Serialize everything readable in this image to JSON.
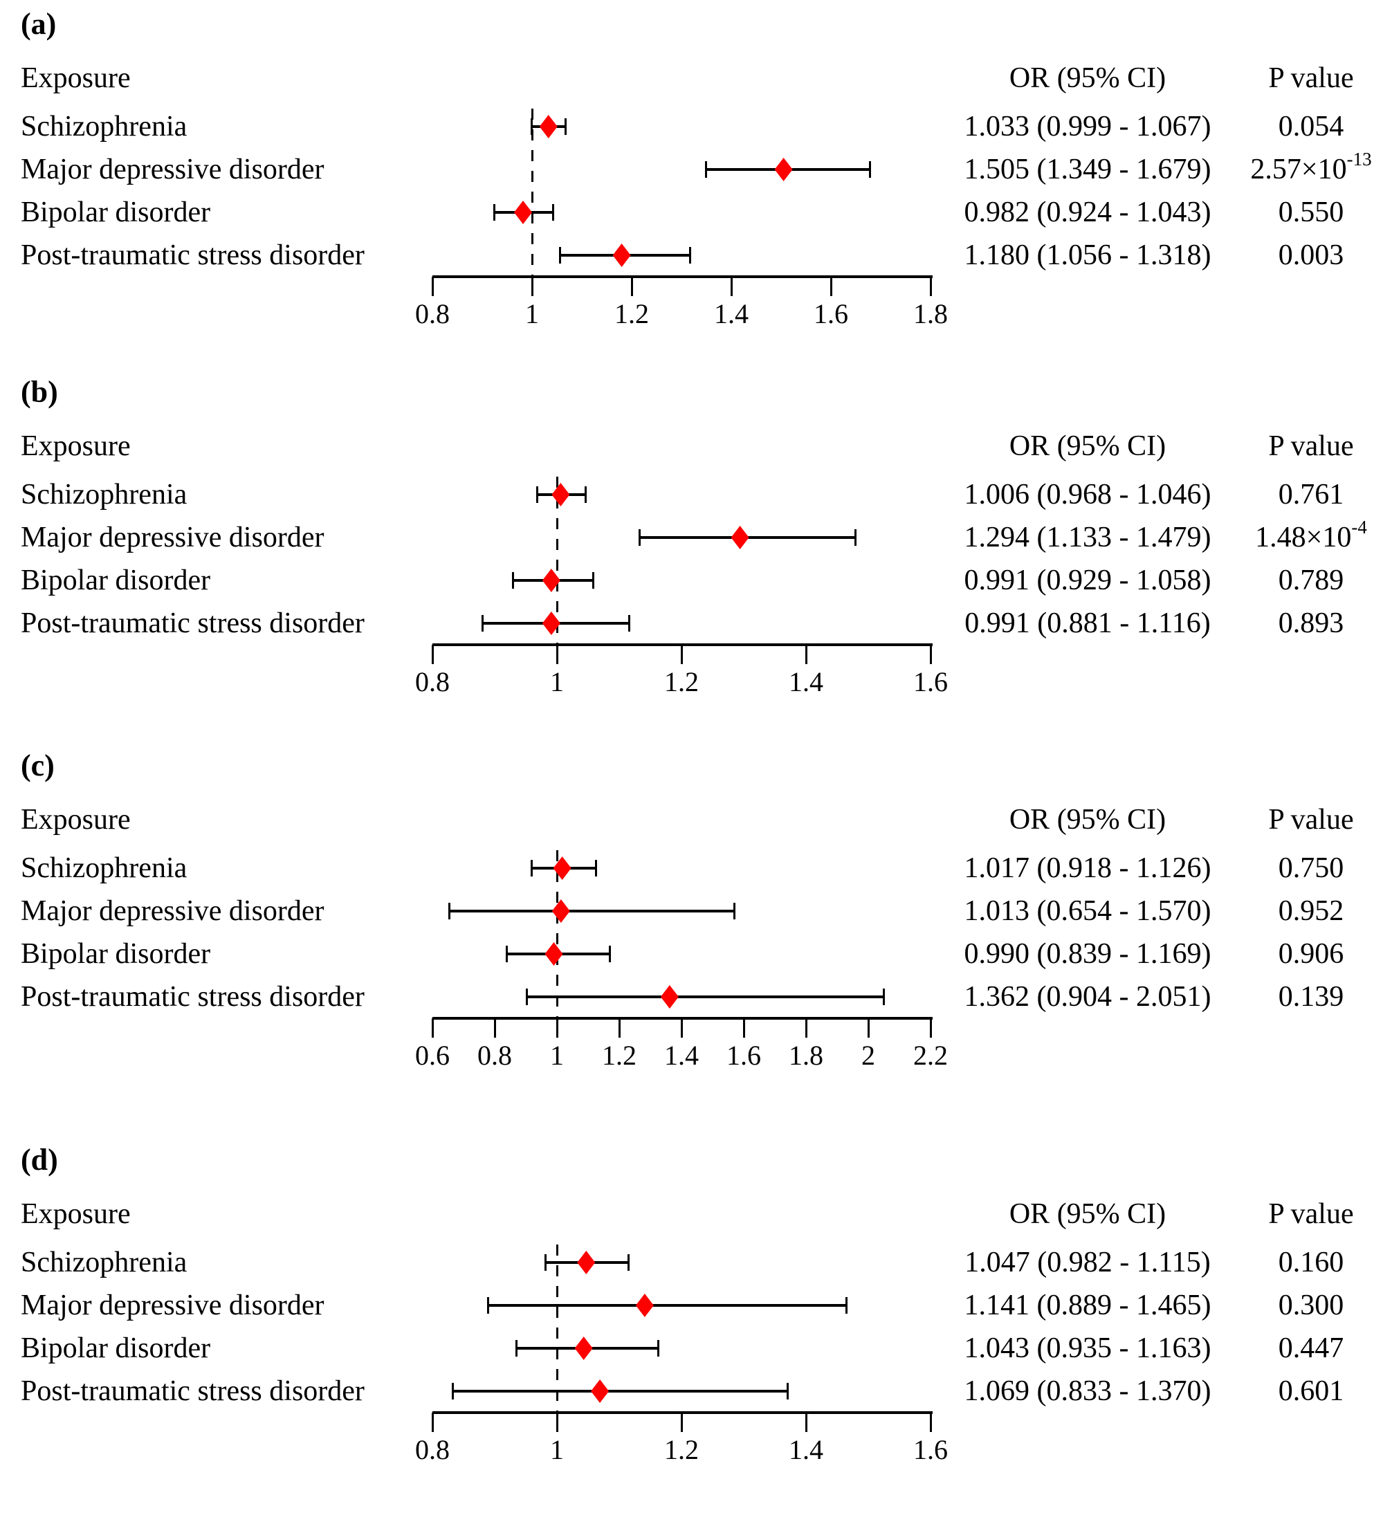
{
  "figure": {
    "background": "#ffffff",
    "text_color": "#000000",
    "marker_color": "#fd0000",
    "line_color": "#000000"
  },
  "columns": {
    "exposure": "Exposure",
    "or_ci": "OR (95% CI)",
    "p_value": "P value"
  },
  "chart_data": [
    {
      "type": "forest",
      "panel": "(a)",
      "legend_position": "none",
      "axis": {
        "min": 0.8,
        "max": 1.8,
        "reference_line": 1,
        "tick_values": [
          0.8,
          1,
          1.2,
          1.4,
          1.6,
          1.8
        ],
        "tick_labels": [
          "0.8",
          "1",
          "1.2",
          "1.4",
          "1.6",
          "1.8"
        ]
      },
      "rows": [
        {
          "exposure": "Schizophrenia",
          "or": 1.033,
          "ci_low": 0.999,
          "ci_high": 1.067,
          "or_ci_text": "1.033 (0.999 - 1.067)",
          "p_text": "0.054",
          "p_sup": ""
        },
        {
          "exposure": "Major depressive disorder",
          "or": 1.505,
          "ci_low": 1.349,
          "ci_high": 1.679,
          "or_ci_text": "1.505 (1.349 - 1.679)",
          "p_text": "2.57×10",
          "p_sup": "-13"
        },
        {
          "exposure": "Bipolar disorder",
          "or": 0.982,
          "ci_low": 0.924,
          "ci_high": 1.043,
          "or_ci_text": "0.982 (0.924 - 1.043)",
          "p_text": "0.550",
          "p_sup": ""
        },
        {
          "exposure": "Post-traumatic stress disorder",
          "or": 1.18,
          "ci_low": 1.056,
          "ci_high": 1.318,
          "or_ci_text": "1.180 (1.056 - 1.318)",
          "p_text": "0.003",
          "p_sup": ""
        }
      ]
    },
    {
      "type": "forest",
      "panel": "(b)",
      "legend_position": "none",
      "axis": {
        "min": 0.8,
        "max": 1.6,
        "reference_line": 1,
        "tick_values": [
          0.8,
          1,
          1.2,
          1.4,
          1.6
        ],
        "tick_labels": [
          "0.8",
          "1",
          "1.2",
          "1.4",
          "1.6"
        ]
      },
      "rows": [
        {
          "exposure": "Schizophrenia",
          "or": 1.006,
          "ci_low": 0.968,
          "ci_high": 1.046,
          "or_ci_text": "1.006 (0.968 - 1.046)",
          "p_text": "0.761",
          "p_sup": ""
        },
        {
          "exposure": "Major depressive disorder",
          "or": 1.294,
          "ci_low": 1.133,
          "ci_high": 1.479,
          "or_ci_text": "1.294 (1.133 - 1.479)",
          "p_text": "1.48×10",
          "p_sup": "-4"
        },
        {
          "exposure": "Bipolar disorder",
          "or": 0.991,
          "ci_low": 0.929,
          "ci_high": 1.058,
          "or_ci_text": "0.991 (0.929 - 1.058)",
          "p_text": "0.789",
          "p_sup": ""
        },
        {
          "exposure": "Post-traumatic stress disorder",
          "or": 0.991,
          "ci_low": 0.881,
          "ci_high": 1.116,
          "or_ci_text": "0.991 (0.881 - 1.116)",
          "p_text": "0.893",
          "p_sup": ""
        }
      ]
    },
    {
      "type": "forest",
      "panel": "(c)",
      "legend_position": "none",
      "axis": {
        "min": 0.6,
        "max": 2.2,
        "reference_line": 1,
        "tick_values": [
          0.6,
          0.8,
          1,
          1.2,
          1.4,
          1.6,
          1.8,
          2,
          2.2
        ],
        "tick_labels": [
          "0.6",
          "0.8",
          "1",
          "1.2",
          "1.4",
          "1.6",
          "1.8",
          "2",
          "2.2"
        ]
      },
      "rows": [
        {
          "exposure": "Schizophrenia",
          "or": 1.017,
          "ci_low": 0.918,
          "ci_high": 1.126,
          "or_ci_text": "1.017 (0.918 - 1.126)",
          "p_text": "0.750",
          "p_sup": ""
        },
        {
          "exposure": "Major depressive disorder",
          "or": 1.013,
          "ci_low": 0.654,
          "ci_high": 1.57,
          "or_ci_text": "1.013 (0.654 - 1.570)",
          "p_text": "0.952",
          "p_sup": ""
        },
        {
          "exposure": "Bipolar disorder",
          "or": 0.99,
          "ci_low": 0.839,
          "ci_high": 1.169,
          "or_ci_text": "0.990 (0.839 - 1.169)",
          "p_text": "0.906",
          "p_sup": ""
        },
        {
          "exposure": "Post-traumatic stress disorder",
          "or": 1.362,
          "ci_low": 0.904,
          "ci_high": 2.051,
          "or_ci_text": "1.362 (0.904 - 2.051)",
          "p_text": "0.139",
          "p_sup": ""
        }
      ]
    },
    {
      "type": "forest",
      "panel": "(d)",
      "legend_position": "none",
      "axis": {
        "min": 0.8,
        "max": 1.6,
        "reference_line": 1,
        "tick_values": [
          0.8,
          1,
          1.2,
          1.4,
          1.6
        ],
        "tick_labels": [
          "0.8",
          "1",
          "1.2",
          "1.4",
          "1.6"
        ]
      },
      "rows": [
        {
          "exposure": "Schizophrenia",
          "or": 1.047,
          "ci_low": 0.982,
          "ci_high": 1.115,
          "or_ci_text": "1.047 (0.982 - 1.115)",
          "p_text": "0.160",
          "p_sup": ""
        },
        {
          "exposure": "Major depressive disorder",
          "or": 1.141,
          "ci_low": 0.889,
          "ci_high": 1.465,
          "or_ci_text": "1.141 (0.889 - 1.465)",
          "p_text": "0.300",
          "p_sup": ""
        },
        {
          "exposure": "Bipolar disorder",
          "or": 1.043,
          "ci_low": 0.935,
          "ci_high": 1.163,
          "or_ci_text": "1.043 (0.935 - 1.163)",
          "p_text": "0.447",
          "p_sup": ""
        },
        {
          "exposure": "Post-traumatic stress disorder",
          "or": 1.069,
          "ci_low": 0.833,
          "ci_high": 1.37,
          "or_ci_text": "1.069 (0.833 - 1.370)",
          "p_text": "0.601",
          "p_sup": ""
        }
      ]
    }
  ]
}
